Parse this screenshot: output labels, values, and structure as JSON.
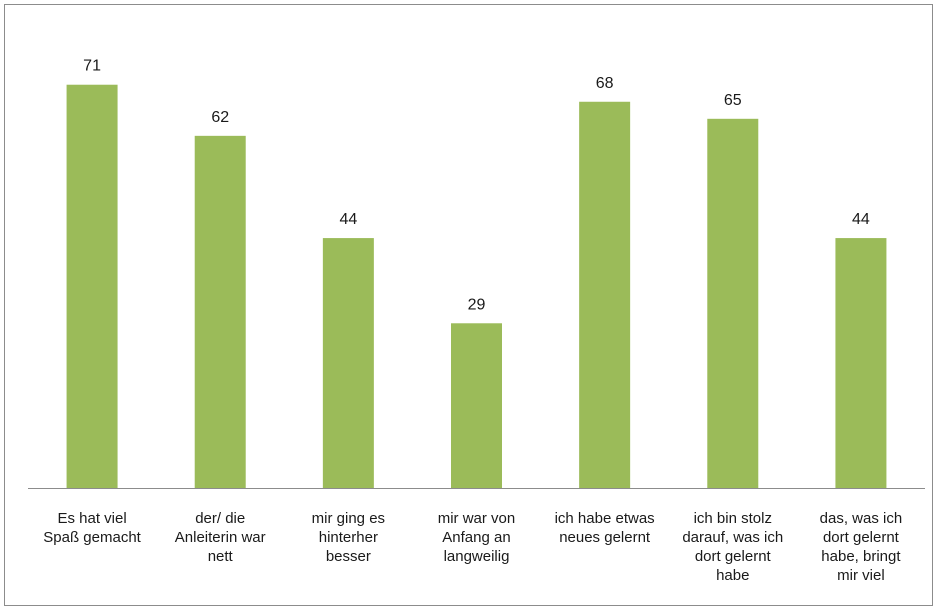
{
  "chart_data": {
    "type": "bar",
    "title": "",
    "xlabel": "",
    "ylabel": "",
    "ylim": [
      0,
      80
    ],
    "grid": false,
    "legend": "none",
    "bar_color": "#9bbb59",
    "categories": [
      [
        "Es hat viel",
        "Spaß gemacht"
      ],
      [
        "der/ die",
        "Anleiterin war",
        "nett"
      ],
      [
        "mir ging es",
        "hinterher",
        "besser"
      ],
      [
        "mir war von",
        "Anfang an",
        "langweilig"
      ],
      [
        "ich habe etwas",
        "neues gelernt"
      ],
      [
        "ich bin stolz",
        "darauf, was ich",
        "dort gelernt",
        "habe"
      ],
      [
        "das, was ich",
        "dort gelernt",
        "habe, bringt",
        "mir viel"
      ]
    ],
    "values": [
      71,
      62,
      44,
      29,
      68,
      65,
      44
    ]
  }
}
